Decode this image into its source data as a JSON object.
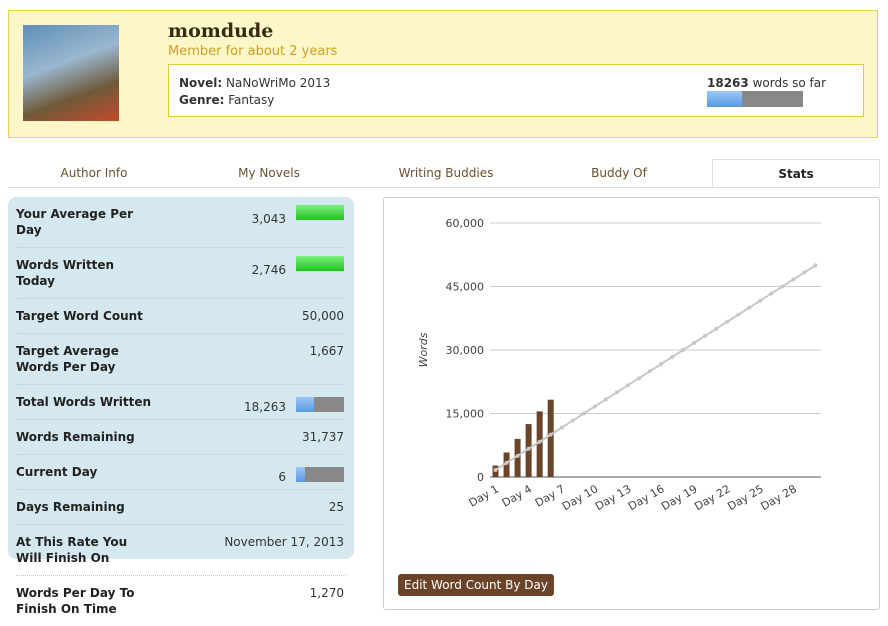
{
  "header": {
    "username": "momdude",
    "member_since": "Member for about 2 years",
    "novel_label": "Novel:",
    "novel": "NaNoWriMo 2013",
    "genre_label": "Genre:",
    "genre": "Fantasy",
    "words": 18263,
    "words_suffix": "words so far"
  },
  "tabs": {
    "items": [
      "Author Info",
      "My Novels",
      "Writing Buddies",
      "Buddy Of",
      "Stats"
    ],
    "active": 4
  },
  "stats": {
    "rows": [
      {
        "label": "Your Average Per Day",
        "value": 3043,
        "value_label": "3,043"
      },
      {
        "label": "Words Written Today",
        "value": 2746,
        "value_label": "2,746"
      },
      {
        "label": "Target Word Count",
        "value": 50000,
        "value_label": "50,000"
      },
      {
        "label": "Target Average Words Per Day",
        "value": 1667,
        "value_label": "1,667"
      },
      {
        "label": "Total Words Written",
        "value": 18263,
        "value_label": "18,263"
      },
      {
        "label": "Words Remaining",
        "value": 31737,
        "value_label": "31,737"
      },
      {
        "label": "Current Day",
        "value": 6,
        "value_label": "6"
      },
      {
        "label": "Days Remaining",
        "value": 25,
        "value_label": "25"
      },
      {
        "label": "At This Rate You Will Finish On",
        "value": "November 17, 2013"
      },
      {
        "label": "Words Per Day To Finish On Time",
        "value": 1270,
        "value_label": "1,270"
      }
    ]
  },
  "chart": {
    "type": "bar_line",
    "y_label": "Words",
    "categories": [
      "Day 1",
      null,
      null,
      "Day 4",
      null,
      null,
      "Day 7",
      null,
      null,
      "Day 10",
      null,
      null,
      "Day 13",
      null,
      null,
      "Day 16",
      null,
      null,
      "Day 19",
      null,
      null,
      "Day 22",
      null,
      null,
      "Day 25",
      null,
      null,
      "Day 28",
      null,
      null
    ],
    "series": [
      {
        "kind": "bar",
        "color": "#6b4328",
        "values": [
          2700,
          5800,
          9000,
          12500,
          15500,
          18263,
          null,
          null,
          null,
          null,
          null,
          null,
          null,
          null,
          null,
          null,
          null,
          null,
          null,
          null,
          null,
          null,
          null,
          null,
          null,
          null,
          null,
          null,
          null,
          null
        ]
      },
      {
        "kind": "line",
        "color": "#c8c8c8",
        "values": [
          1667,
          3333,
          5000,
          6667,
          8333,
          10000,
          11667,
          13333,
          15000,
          16667,
          18333,
          20000,
          21667,
          23333,
          25000,
          26667,
          28333,
          30000,
          31667,
          33333,
          35000,
          36667,
          38333,
          40000,
          41667,
          43333,
          45000,
          46667,
          48333,
          50000
        ]
      }
    ],
    "ylim": [
      0,
      60000
    ],
    "yticks": [
      {
        "value": 0,
        "label": "0"
      },
      {
        "value": 15000,
        "label": "15,000"
      },
      {
        "value": 30000,
        "label": "30,000"
      },
      {
        "value": 45000,
        "label": "45,000"
      },
      {
        "value": 60000,
        "label": "60,000"
      }
    ],
    "grid": true
  },
  "button": "Edit Word Count By Day"
}
